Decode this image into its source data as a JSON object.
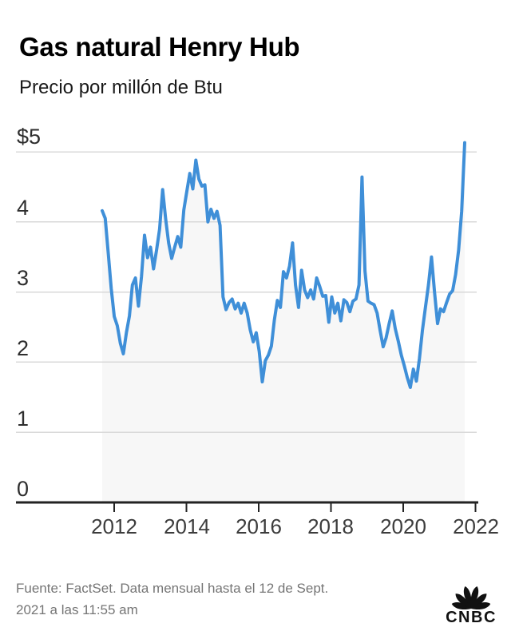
{
  "header": {
    "title": "Gas natural Henry Hub",
    "subtitle": "Precio por millón de Btu"
  },
  "footer": {
    "source_line1": "Fuente: FactSet. Data mensual hasta el 12 de Sept.",
    "source_line2": "2021 a las 11:55 am",
    "logo_text": "CNBC"
  },
  "chart_data": {
    "type": "area",
    "title": "Gas natural Henry Hub",
    "ylabel": "Precio por millón de Btu ($/MMBtu)",
    "frequency": "monthly",
    "x_start": "2011-09",
    "x_end": "2021-09",
    "x_tick_labels": [
      "2012",
      "2014",
      "2016",
      "2018",
      "2020",
      "2022"
    ],
    "x_tick_years": [
      2012,
      2014,
      2016,
      2018,
      2020,
      2022
    ],
    "y_tick_labels": [
      "$5",
      "4",
      "3",
      "2",
      "1",
      "0"
    ],
    "y_tick_values": [
      5,
      4,
      3,
      2,
      1,
      0
    ],
    "ylim": [
      0,
      5.2
    ],
    "grid": true,
    "legend": "none",
    "line_color": "#3F8FD8",
    "fill_color": "#F7F7F7",
    "grid_color": "#D9D9D9",
    "axis_color": "#232323",
    "last_value": 5.13,
    "values": [
      4.16,
      4.05,
      3.55,
      3.05,
      2.65,
      2.52,
      2.27,
      2.12,
      2.42,
      2.66,
      3.1,
      3.2,
      2.8,
      3.22,
      3.81,
      3.49,
      3.64,
      3.33,
      3.6,
      3.9,
      4.46,
      4.05,
      3.7,
      3.48,
      3.64,
      3.79,
      3.64,
      4.17,
      4.43,
      4.69,
      4.47,
      4.88,
      4.61,
      4.51,
      4.53,
      4.0,
      4.18,
      4.05,
      4.15,
      3.95,
      2.93,
      2.75,
      2.85,
      2.9,
      2.76,
      2.84,
      2.7,
      2.84,
      2.7,
      2.46,
      2.29,
      2.42,
      2.15,
      1.72,
      2.02,
      2.1,
      2.23,
      2.6,
      2.88,
      2.78,
      3.29,
      3.2,
      3.37,
      3.7,
      3.1,
      2.78,
      3.31,
      3.03,
      2.92,
      3.03,
      2.9,
      3.2,
      3.08,
      2.94,
      2.95,
      2.57,
      2.93,
      2.7,
      2.84,
      2.59,
      2.89,
      2.85,
      2.72,
      2.87,
      2.9,
      3.1,
      4.64,
      3.3,
      2.87,
      2.84,
      2.82,
      2.7,
      2.45,
      2.22,
      2.35,
      2.55,
      2.73,
      2.48,
      2.3,
      2.1,
      1.95,
      1.78,
      1.64,
      1.9,
      1.73,
      2.05,
      2.45,
      2.78,
      3.1,
      3.5,
      3.0,
      2.55,
      2.76,
      2.72,
      2.85,
      2.97,
      3.02,
      3.25,
      3.6,
      4.15,
      5.13
    ]
  }
}
